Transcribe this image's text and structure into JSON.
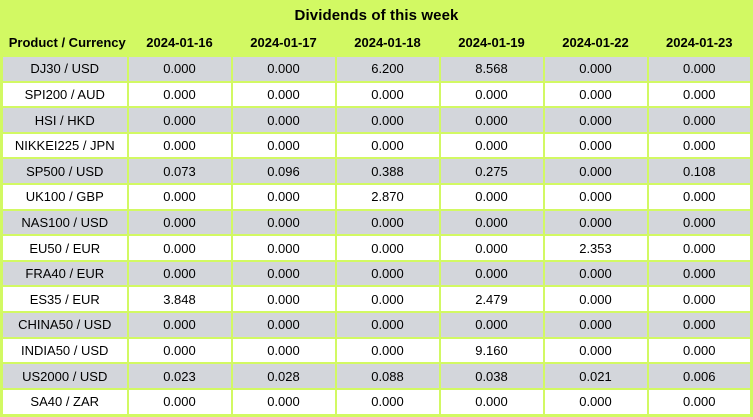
{
  "chart_data": {
    "type": "table",
    "title": "Dividends of this week",
    "columns": [
      "Product / Currency",
      "2024-01-16",
      "2024-01-17",
      "2024-01-18",
      "2024-01-19",
      "2024-01-22",
      "2024-01-23"
    ],
    "rows": [
      {
        "product": "DJ30 / USD",
        "values": [
          "0.000",
          "0.000",
          "6.200",
          "8.568",
          "0.000",
          "0.000"
        ]
      },
      {
        "product": "SPI200 / AUD",
        "values": [
          "0.000",
          "0.000",
          "0.000",
          "0.000",
          "0.000",
          "0.000"
        ]
      },
      {
        "product": "HSI / HKD",
        "values": [
          "0.000",
          "0.000",
          "0.000",
          "0.000",
          "0.000",
          "0.000"
        ]
      },
      {
        "product": "NIKKEI225 / JPN",
        "values": [
          "0.000",
          "0.000",
          "0.000",
          "0.000",
          "0.000",
          "0.000"
        ]
      },
      {
        "product": "SP500 / USD",
        "values": [
          "0.073",
          "0.096",
          "0.388",
          "0.275",
          "0.000",
          "0.108"
        ]
      },
      {
        "product": "UK100 / GBP",
        "values": [
          "0.000",
          "0.000",
          "2.870",
          "0.000",
          "0.000",
          "0.000"
        ]
      },
      {
        "product": "NAS100 / USD",
        "values": [
          "0.000",
          "0.000",
          "0.000",
          "0.000",
          "0.000",
          "0.000"
        ]
      },
      {
        "product": "EU50 / EUR",
        "values": [
          "0.000",
          "0.000",
          "0.000",
          "0.000",
          "2.353",
          "0.000"
        ]
      },
      {
        "product": "FRA40 / EUR",
        "values": [
          "0.000",
          "0.000",
          "0.000",
          "0.000",
          "0.000",
          "0.000"
        ]
      },
      {
        "product": "ES35 / EUR",
        "values": [
          "3.848",
          "0.000",
          "0.000",
          "2.479",
          "0.000",
          "0.000"
        ]
      },
      {
        "product": "CHINA50 / USD",
        "values": [
          "0.000",
          "0.000",
          "0.000",
          "0.000",
          "0.000",
          "0.000"
        ]
      },
      {
        "product": "INDIA50 / USD",
        "values": [
          "0.000",
          "0.000",
          "0.000",
          "9.160",
          "0.000",
          "0.000"
        ]
      },
      {
        "product": "US2000 / USD",
        "values": [
          "0.023",
          "0.028",
          "0.088",
          "0.038",
          "0.021",
          "0.006"
        ]
      },
      {
        "product": "SA40 / ZAR",
        "values": [
          "0.000",
          "0.000",
          "0.000",
          "0.000",
          "0.000",
          "0.000"
        ]
      }
    ],
    "layout": {
      "striped": true,
      "stripe_order": "gray-first",
      "grid": true,
      "title_position": "top-center"
    }
  },
  "colors": {
    "accent_green": "#d2f963",
    "row_alt_gray": "#d3d6db",
    "row_white": "#ffffff",
    "text_black": "#000000"
  }
}
